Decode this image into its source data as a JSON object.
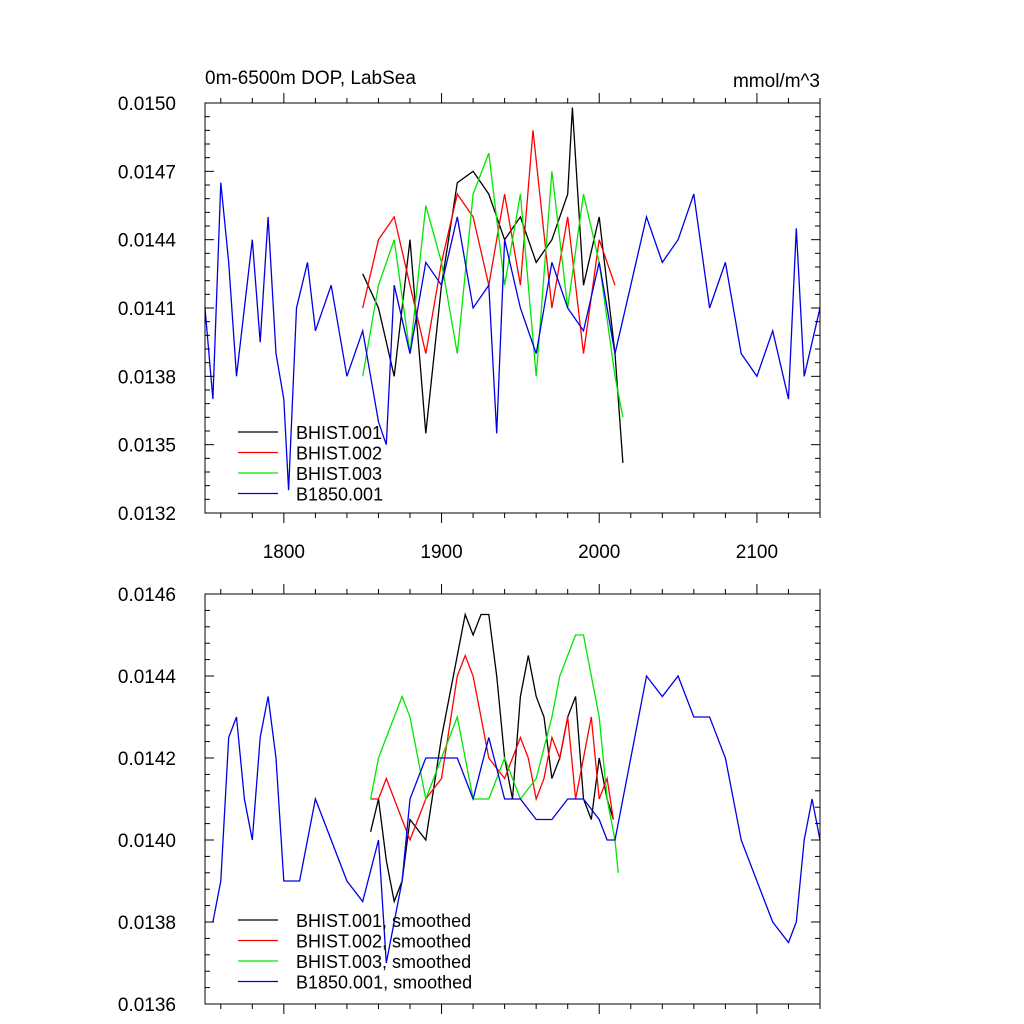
{
  "colors": {
    "BHIST.001": "#000000",
    "BHIST.002": "#ff0000",
    "BHIST.003": "#00e600",
    "B1850.001": "#0000e6"
  },
  "chart_data": [
    {
      "type": "line",
      "title": "0m-6500m DOP, LabSea",
      "units": "mmol/m^3",
      "xlim": [
        1750,
        2140
      ],
      "ylim": [
        0.0132,
        0.015
      ],
      "xticks": [
        1800,
        1900,
        2000,
        2100
      ],
      "xticklabels": [
        "1800",
        "1900",
        "2000",
        "2100"
      ],
      "yticks": [
        0.0132,
        0.0135,
        0.0138,
        0.0141,
        0.0144,
        0.0147,
        0.015
      ],
      "yticklabels": [
        "0.0132",
        "0.0135",
        "0.0138",
        "0.0141",
        "0.0144",
        "0.0147",
        "0.0150"
      ],
      "grid": false,
      "legend": "bottom-left",
      "series": [
        {
          "name": "BHIST.001",
          "x": [
            1850,
            1860,
            1870,
            1880,
            1890,
            1900,
            1910,
            1920,
            1930,
            1940,
            1950,
            1960,
            1970,
            1980,
            1983,
            1990,
            2000,
            2010,
            2015
          ],
          "y": [
            0.01425,
            0.0141,
            0.0138,
            0.0144,
            0.01355,
            0.0142,
            0.01465,
            0.0147,
            0.0146,
            0.0144,
            0.0145,
            0.0143,
            0.0144,
            0.0146,
            0.01498,
            0.0142,
            0.0145,
            0.0139,
            0.01342
          ]
        },
        {
          "name": "BHIST.002",
          "x": [
            1850,
            1860,
            1870,
            1880,
            1890,
            1900,
            1910,
            1920,
            1930,
            1940,
            1950,
            1958,
            1970,
            1980,
            1990,
            2000,
            2010
          ],
          "y": [
            0.0141,
            0.0144,
            0.0145,
            0.0142,
            0.0139,
            0.0143,
            0.0146,
            0.0145,
            0.0142,
            0.0146,
            0.0142,
            0.01488,
            0.0141,
            0.0145,
            0.0139,
            0.0144,
            0.0142
          ]
        },
        {
          "name": "BHIST.003",
          "x": [
            1850,
            1860,
            1870,
            1880,
            1890,
            1900,
            1910,
            1920,
            1930,
            1940,
            1950,
            1960,
            1970,
            1980,
            1990,
            2000,
            2010,
            2015
          ],
          "y": [
            0.0138,
            0.0142,
            0.0144,
            0.0139,
            0.01455,
            0.0143,
            0.0139,
            0.0146,
            0.01478,
            0.0142,
            0.0146,
            0.0138,
            0.0147,
            0.0141,
            0.0146,
            0.0143,
            0.0138,
            0.01362
          ]
        },
        {
          "name": "B1850.001",
          "x": [
            1750,
            1755,
            1760,
            1765,
            1770,
            1775,
            1780,
            1785,
            1790,
            1795,
            1800,
            1803,
            1808,
            1815,
            1820,
            1830,
            1840,
            1850,
            1860,
            1865,
            1870,
            1880,
            1890,
            1900,
            1910,
            1920,
            1930,
            1935,
            1940,
            1950,
            1960,
            1970,
            1980,
            1990,
            2000,
            2010,
            2020,
            2030,
            2040,
            2050,
            2060,
            2070,
            2080,
            2090,
            2100,
            2110,
            2120,
            2125,
            2130,
            2140
          ],
          "y": [
            0.0141,
            0.0137,
            0.01465,
            0.0143,
            0.0138,
            0.0141,
            0.0144,
            0.01395,
            0.0145,
            0.0139,
            0.0137,
            0.0133,
            0.0141,
            0.0143,
            0.014,
            0.0142,
            0.0138,
            0.014,
            0.0136,
            0.0135,
            0.0142,
            0.0139,
            0.0143,
            0.0142,
            0.0145,
            0.0141,
            0.0142,
            0.01355,
            0.0144,
            0.0141,
            0.0139,
            0.0143,
            0.0141,
            0.014,
            0.0143,
            0.0139,
            0.0142,
            0.0145,
            0.0143,
            0.0144,
            0.0146,
            0.0141,
            0.0143,
            0.0139,
            0.0138,
            0.014,
            0.0137,
            0.01445,
            0.0138,
            0.0141
          ]
        }
      ]
    },
    {
      "type": "line",
      "xlim": [
        1750,
        2140
      ],
      "ylim": [
        0.0136,
        0.0146
      ],
      "xticks": [
        1800,
        1900,
        2000,
        2100
      ],
      "yticks": [
        0.0136,
        0.0138,
        0.014,
        0.0142,
        0.0144,
        0.0146
      ],
      "yticklabels": [
        "0.0136",
        "0.0138",
        "0.0140",
        "0.0142",
        "0.0144",
        "0.0146"
      ],
      "grid": false,
      "legend": "bottom-left",
      "series": [
        {
          "name": "BHIST.001, smoothed",
          "x": [
            1855,
            1860,
            1865,
            1870,
            1875,
            1880,
            1890,
            1900,
            1910,
            1915,
            1920,
            1925,
            1930,
            1935,
            1940,
            1945,
            1950,
            1955,
            1960,
            1965,
            1970,
            1975,
            1980,
            1985,
            1990,
            1995,
            2000,
            2005,
            2009
          ],
          "y": [
            0.01402,
            0.0141,
            0.01395,
            0.01385,
            0.0139,
            0.01405,
            0.014,
            0.01425,
            0.01445,
            0.01455,
            0.0145,
            0.01455,
            0.01455,
            0.0144,
            0.0142,
            0.0141,
            0.01435,
            0.01445,
            0.01435,
            0.0143,
            0.01415,
            0.0142,
            0.0143,
            0.01435,
            0.0141,
            0.01405,
            0.0142,
            0.0141,
            0.01405
          ]
        },
        {
          "name": "BHIST.002, smoothed",
          "x": [
            1855,
            1860,
            1865,
            1870,
            1875,
            1880,
            1890,
            1900,
            1910,
            1915,
            1920,
            1925,
            1930,
            1940,
            1950,
            1955,
            1960,
            1965,
            1970,
            1975,
            1980,
            1985,
            1990,
            1995,
            2000,
            2005,
            2009
          ],
          "y": [
            0.0141,
            0.0141,
            0.01415,
            0.0141,
            0.01405,
            0.014,
            0.0141,
            0.01415,
            0.0144,
            0.01445,
            0.0144,
            0.0143,
            0.0142,
            0.01415,
            0.01425,
            0.0142,
            0.0141,
            0.01415,
            0.01425,
            0.0142,
            0.0143,
            0.0141,
            0.0142,
            0.0143,
            0.0141,
            0.01415,
            0.01405
          ]
        },
        {
          "name": "BHIST.003, smoothed",
          "x": [
            1855,
            1860,
            1865,
            1870,
            1875,
            1880,
            1885,
            1890,
            1900,
            1910,
            1920,
            1930,
            1940,
            1950,
            1960,
            1970,
            1975,
            1980,
            1985,
            1990,
            1995,
            2000,
            2005,
            2010,
            2012
          ],
          "y": [
            0.0141,
            0.0142,
            0.01425,
            0.0143,
            0.01435,
            0.0143,
            0.0142,
            0.0141,
            0.0142,
            0.0143,
            0.0141,
            0.0141,
            0.0142,
            0.0141,
            0.01415,
            0.0143,
            0.0144,
            0.01445,
            0.0145,
            0.0145,
            0.0144,
            0.0143,
            0.0141,
            0.014,
            0.01392
          ]
        },
        {
          "name": "B1850.001, smoothed",
          "x": [
            1755,
            1760,
            1765,
            1770,
            1775,
            1780,
            1785,
            1790,
            1795,
            1800,
            1810,
            1820,
            1830,
            1840,
            1850,
            1860,
            1865,
            1870,
            1875,
            1880,
            1890,
            1900,
            1910,
            1920,
            1930,
            1940,
            1950,
            1960,
            1970,
            1980,
            1990,
            2000,
            2005,
            2010,
            2020,
            2030,
            2040,
            2050,
            2060,
            2070,
            2080,
            2090,
            2100,
            2110,
            2120,
            2125,
            2130,
            2135,
            2140
          ],
          "y": [
            0.0138,
            0.0139,
            0.01425,
            0.0143,
            0.0141,
            0.014,
            0.01425,
            0.01435,
            0.0142,
            0.0139,
            0.0139,
            0.0141,
            0.014,
            0.0139,
            0.01385,
            0.014,
            0.0137,
            0.0138,
            0.0139,
            0.0141,
            0.0142,
            0.0142,
            0.0142,
            0.0141,
            0.01425,
            0.0141,
            0.0141,
            0.01405,
            0.01405,
            0.0141,
            0.0141,
            0.01405,
            0.014,
            0.014,
            0.0142,
            0.0144,
            0.01435,
            0.0144,
            0.0143,
            0.0143,
            0.0142,
            0.014,
            0.0139,
            0.0138,
            0.01375,
            0.0138,
            0.014,
            0.0141,
            0.014
          ]
        }
      ]
    }
  ]
}
